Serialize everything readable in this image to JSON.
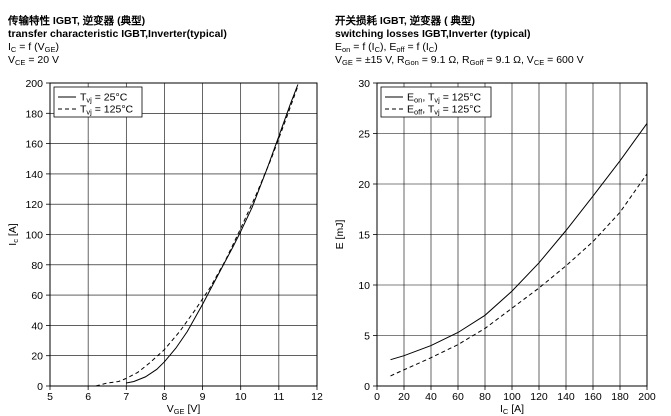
{
  "chart_data": [
    {
      "type": "line",
      "header": {
        "title_cn": "传输特性 IGBT, 逆变器 (典型)",
        "title_en": "transfer characteristic  IGBT,Inverter(typical)",
        "formula": {
          "main": "I",
          "sub": "C",
          "eq": " = f (V",
          "sub2": "GE",
          "close": ")"
        },
        "condition": {
          "main": "V",
          "sub": "CE",
          "eq": " = 20 V"
        }
      },
      "xlabel": {
        "main": "V",
        "sub": "GE",
        "unit": " [V]"
      },
      "ylabel": {
        "main": "I",
        "sub": "c",
        "unit": " [A]"
      },
      "xlim": [
        5,
        12
      ],
      "ylim": [
        0,
        200
      ],
      "xticks": [
        5,
        6,
        7,
        8,
        9,
        10,
        11,
        12
      ],
      "yticks": [
        0,
        20,
        40,
        60,
        80,
        100,
        120,
        140,
        160,
        180,
        200
      ],
      "grid": true,
      "legend_position": "top-left",
      "series": [
        {
          "name": {
            "main": "T",
            "sub": "vj",
            "rest": " = 25°C"
          },
          "style": "solid",
          "x": [
            7.0,
            7.2,
            7.5,
            7.8,
            8.0,
            8.3,
            8.6,
            9.0,
            9.4,
            9.8,
            10.0,
            10.3,
            10.7,
            11.0,
            11.3,
            11.5
          ],
          "y": [
            2,
            3,
            6,
            11,
            16,
            25,
            36,
            54,
            73,
            92,
            102,
            118,
            144,
            165,
            186,
            199
          ]
        },
        {
          "name": {
            "main": "T",
            "sub": "vj",
            "rest": " = 125°C"
          },
          "style": "dashed",
          "x": [
            6.2,
            6.5,
            6.8,
            7.0,
            7.3,
            7.6,
            8.0,
            8.4,
            8.8,
            9.2,
            9.6,
            10.0,
            10.4,
            10.8,
            11.2,
            11.5
          ],
          "y": [
            0,
            2,
            3,
            5,
            9,
            15,
            24,
            36,
            50,
            65,
            83,
            104,
            126,
            150,
            177,
            198
          ]
        }
      ]
    },
    {
      "type": "line",
      "header": {
        "title_cn": "开关损耗 IGBT, 逆变器  ( 典型)",
        "title_en": "switching losses  IGBT,Inverter (typical)",
        "formula": "E_on = f (I_C), E_off = f (I_C)",
        "condition": "V_GE = ±15 V, R_Gon = 9.1 Ω, R_Goff = 9.1 Ω, V_CE = 600 V"
      },
      "xlabel": {
        "main": "I",
        "sub": "C",
        "unit": " [A]"
      },
      "ylabel": "E [mJ]",
      "xlim": [
        0,
        200
      ],
      "ylim": [
        0,
        30
      ],
      "xticks": [
        0,
        20,
        40,
        60,
        80,
        100,
        120,
        140,
        160,
        180,
        200
      ],
      "yticks": [
        0,
        5,
        10,
        15,
        20,
        25,
        30
      ],
      "grid": true,
      "legend_position": "top-left",
      "series": [
        {
          "name": {
            "main": "E",
            "sub": "on",
            "rest": ", T",
            "sub2": "vj",
            "rest2": " = 125°C"
          },
          "style": "solid",
          "x": [
            10,
            20,
            40,
            60,
            80,
            100,
            120,
            140,
            160,
            180,
            200
          ],
          "y": [
            2.6,
            3.0,
            4.0,
            5.3,
            7.0,
            9.4,
            12.2,
            15.4,
            18.8,
            22.3,
            26.0
          ]
        },
        {
          "name": {
            "main": "E",
            "sub": "off",
            "rest": ", T",
            "sub2": "vj",
            "rest2": " = 125°C"
          },
          "style": "dashed",
          "x": [
            10,
            20,
            40,
            60,
            80,
            100,
            120,
            140,
            160,
            180,
            200
          ],
          "y": [
            1.0,
            1.6,
            2.8,
            4.1,
            5.7,
            7.7,
            9.7,
            11.9,
            14.3,
            17.2,
            21.0
          ]
        }
      ]
    }
  ]
}
